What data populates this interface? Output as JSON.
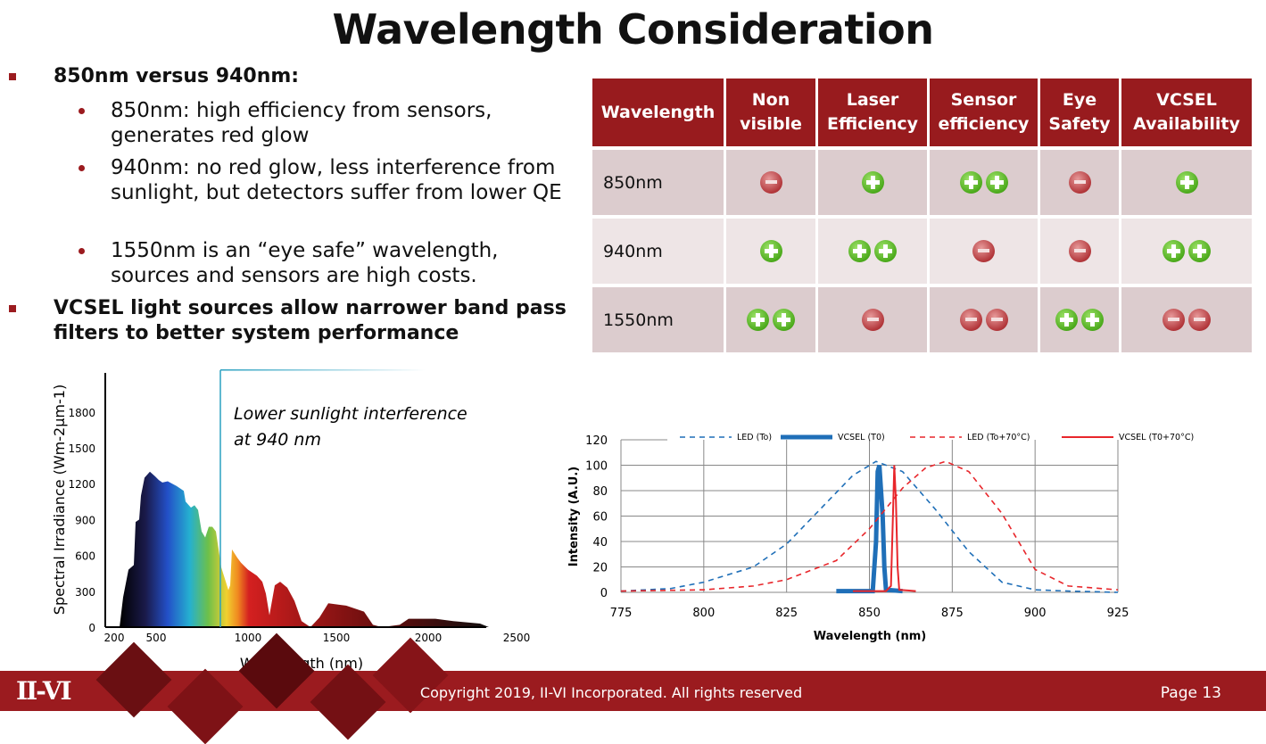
{
  "title": "Wavelength Consideration",
  "bullets": [
    {
      "text": "850nm versus 940nm:",
      "sub": [
        "850nm: high efficiency from sensors, generates red glow",
        "940nm: no red glow, less interference from sunlight, but detectors suffer from lower QE",
        "1550nm is an “eye safe” wavelength, sources and sensors are high costs."
      ]
    },
    {
      "text": "VCSEL light sources allow narrower band pass filters to better system performance",
      "sub": []
    }
  ],
  "table": {
    "headers": [
      "Wavelength",
      "Non visible",
      "Laser Efficiency",
      "Sensor efficiency",
      "Eye Safety",
      "VCSEL Availability"
    ],
    "rows": [
      {
        "label": "850nm",
        "cells": [
          "minus",
          "plus",
          "plus plus",
          "minus",
          "plus"
        ]
      },
      {
        "label": "940nm",
        "cells": [
          "plus",
          "plus plus",
          "minus",
          "minus",
          "plus plus"
        ]
      },
      {
        "label": "1550nm",
        "cells": [
          "plus plus",
          "minus",
          "minus minus",
          "plus plus",
          "minus minus"
        ]
      }
    ],
    "colors": {
      "header": "#981b1e",
      "plus": "#4caa1c",
      "minus": "#b2363a"
    }
  },
  "chart_data": [
    {
      "type": "area",
      "xlabel": "Wavelength (nm)",
      "ylabel": "Spectral Irradiance (Wm-2µm-1)",
      "x_ticks": [
        200,
        500,
        1000,
        1500,
        2000,
        2500
      ],
      "y_ticks": [
        0,
        300,
        600,
        900,
        1200,
        1500,
        1800
      ],
      "annotation": "Lower sunlight interference at 940 nm",
      "marker_x": 940,
      "points": [
        [
          280,
          0
        ],
        [
          300,
          250
        ],
        [
          330,
          480
        ],
        [
          360,
          520
        ],
        [
          370,
          880
        ],
        [
          390,
          900
        ],
        [
          400,
          1100
        ],
        [
          420,
          1250
        ],
        [
          450,
          1300
        ],
        [
          480,
          1260
        ],
        [
          500,
          1230
        ],
        [
          520,
          1210
        ],
        [
          550,
          1220
        ],
        [
          600,
          1180
        ],
        [
          640,
          1140
        ],
        [
          650,
          1050
        ],
        [
          680,
          1000
        ],
        [
          700,
          1020
        ],
        [
          720,
          980
        ],
        [
          740,
          800
        ],
        [
          760,
          750
        ],
        [
          780,
          840
        ],
        [
          800,
          840
        ],
        [
          820,
          800
        ],
        [
          850,
          500
        ],
        [
          890,
          310
        ],
        [
          900,
          350
        ],
        [
          910,
          650
        ],
        [
          940,
          580
        ],
        [
          960,
          540
        ],
        [
          1000,
          480
        ],
        [
          1050,
          430
        ],
        [
          1080,
          380
        ],
        [
          1100,
          280
        ],
        [
          1120,
          100
        ],
        [
          1150,
          350
        ],
        [
          1180,
          380
        ],
        [
          1220,
          330
        ],
        [
          1260,
          220
        ],
        [
          1300,
          50
        ],
        [
          1350,
          0
        ],
        [
          1400,
          80
        ],
        [
          1450,
          200
        ],
        [
          1550,
          180
        ],
        [
          1650,
          130
        ],
        [
          1700,
          20
        ],
        [
          1750,
          0
        ],
        [
          1850,
          20
        ],
        [
          1900,
          70
        ],
        [
          2050,
          70
        ],
        [
          2150,
          50
        ],
        [
          2300,
          30
        ],
        [
          2350,
          0
        ]
      ]
    },
    {
      "type": "line",
      "xlabel": "Wavelength (nm)",
      "ylabel": "Intensity (A.U.)",
      "xlim": [
        775,
        925
      ],
      "ylim": [
        0,
        120
      ],
      "x_ticks": [
        775,
        800,
        825,
        850,
        875,
        900,
        925
      ],
      "y_ticks": [
        0,
        20,
        40,
        60,
        80,
        100,
        120
      ],
      "grid": true,
      "legend": "top",
      "series": [
        {
          "name": "LED (To)",
          "color": "#1f6fb8",
          "style": "dashed",
          "points": [
            [
              775,
              1
            ],
            [
              790,
              3
            ],
            [
              800,
              8
            ],
            [
              815,
              20
            ],
            [
              825,
              38
            ],
            [
              835,
              65
            ],
            [
              845,
              92
            ],
            [
              852,
              103
            ],
            [
              860,
              95
            ],
            [
              870,
              65
            ],
            [
              880,
              32
            ],
            [
              890,
              8
            ],
            [
              900,
              2
            ],
            [
              910,
              1
            ],
            [
              925,
              0
            ]
          ]
        },
        {
          "name": "VCSEL (T0)",
          "color": "#1f6fb8",
          "style": "thick",
          "points": [
            [
              840,
              1
            ],
            [
              851,
              1
            ],
            [
              852,
              40
            ],
            [
              852.5,
              95
            ],
            [
              853,
              100
            ],
            [
              854,
              60
            ],
            [
              854.5,
              20
            ],
            [
              855,
              2
            ],
            [
              860,
              1
            ]
          ]
        },
        {
          "name": "LED (To+70°C)",
          "color": "#e8262b",
          "style": "dashed",
          "points": [
            [
              775,
              1
            ],
            [
              800,
              2
            ],
            [
              815,
              5
            ],
            [
              825,
              10
            ],
            [
              840,
              25
            ],
            [
              850,
              50
            ],
            [
              860,
              82
            ],
            [
              867,
              98
            ],
            [
              873,
              103
            ],
            [
              880,
              95
            ],
            [
              890,
              62
            ],
            [
              900,
              18
            ],
            [
              910,
              5
            ],
            [
              925,
              2
            ]
          ]
        },
        {
          "name": "VCSEL (T0+70°C)",
          "color": "#e8262b",
          "style": "solid",
          "points": [
            [
              845,
              1
            ],
            [
              855,
              1
            ],
            [
              856.5,
              5
            ],
            [
              857.2,
              70
            ],
            [
              857.5,
              100
            ],
            [
              858,
              72
            ],
            [
              858.5,
              20
            ],
            [
              859,
              2
            ],
            [
              864,
              1
            ]
          ]
        }
      ]
    }
  ],
  "footer": {
    "logo": "II-VI",
    "copyright": "Copyright 2019, II-VI Incorporated. All rights reserved",
    "page": "Page 13"
  }
}
